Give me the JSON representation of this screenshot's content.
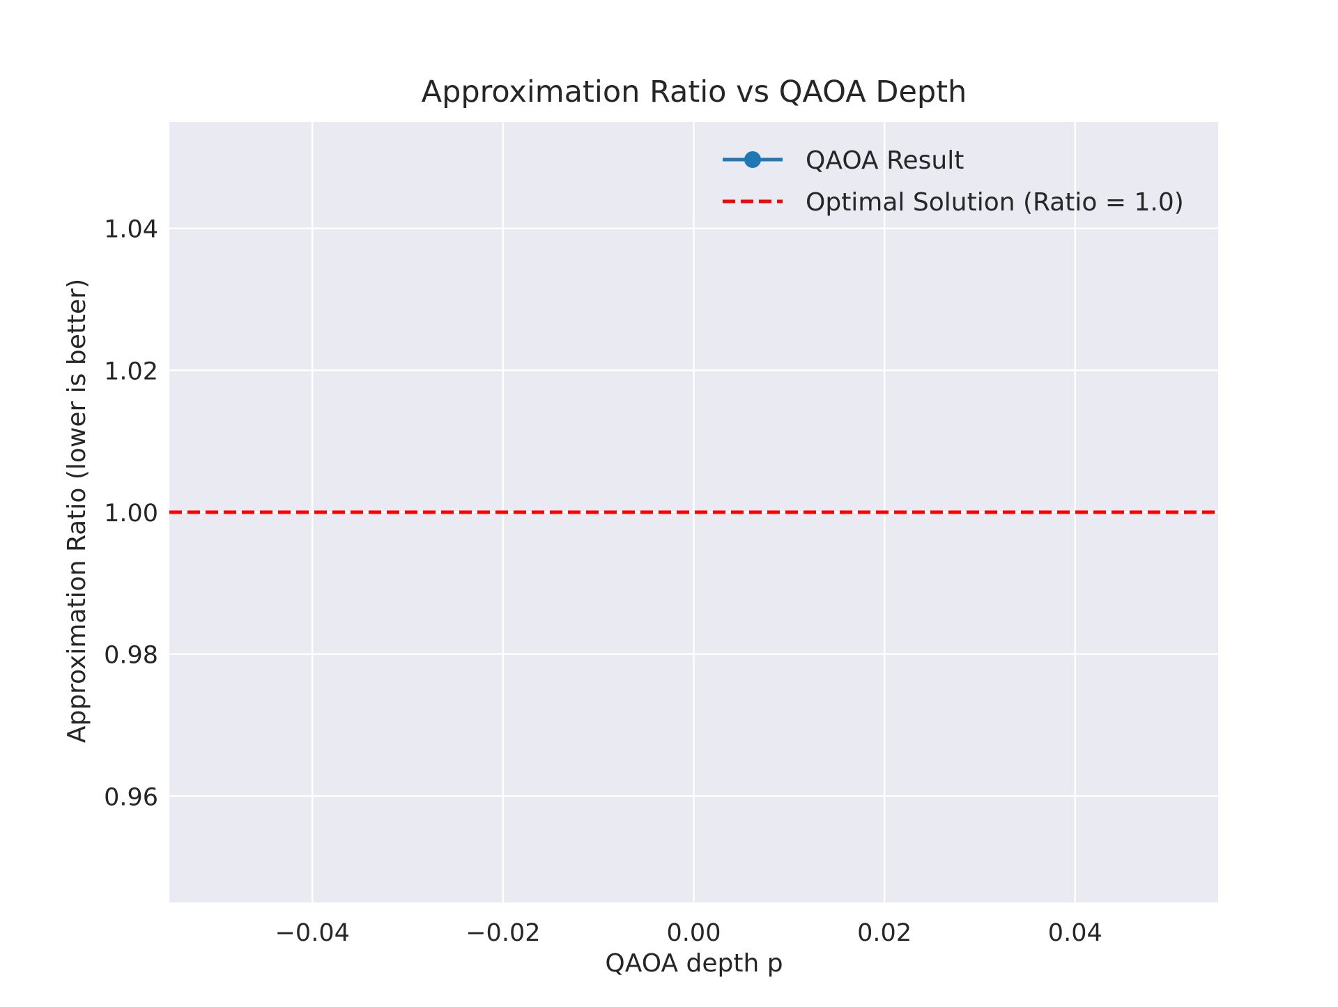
{
  "chart_data": {
    "type": "line",
    "title": "Approximation Ratio vs QAOA Depth",
    "xlabel": "QAOA depth p",
    "ylabel": "Approximation Ratio (lower is better)",
    "xlim": [
      -0.055,
      0.055
    ],
    "ylim": [
      0.945,
      1.055
    ],
    "xticks": [
      -0.04,
      -0.02,
      0.0,
      0.02,
      0.04
    ],
    "xtick_labels": [
      "−0.04",
      "−0.02",
      "0.00",
      "0.02",
      "0.04"
    ],
    "yticks": [
      0.96,
      0.98,
      1.0,
      1.02,
      1.04
    ],
    "ytick_labels": [
      "0.96",
      "0.98",
      "1.00",
      "1.02",
      "1.04"
    ],
    "grid": true,
    "background": "#eaeaf2",
    "legend_position": "top-right",
    "series": [
      {
        "name": "QAOA Result",
        "style": "solid-line-with-circle-markers",
        "color": "#1f77b4",
        "x": [],
        "y": []
      },
      {
        "name": "Optimal Solution (Ratio = 1.0)",
        "style": "dashed-horizontal-line",
        "color": "#ff0000",
        "y_constant": 1.0
      }
    ]
  }
}
